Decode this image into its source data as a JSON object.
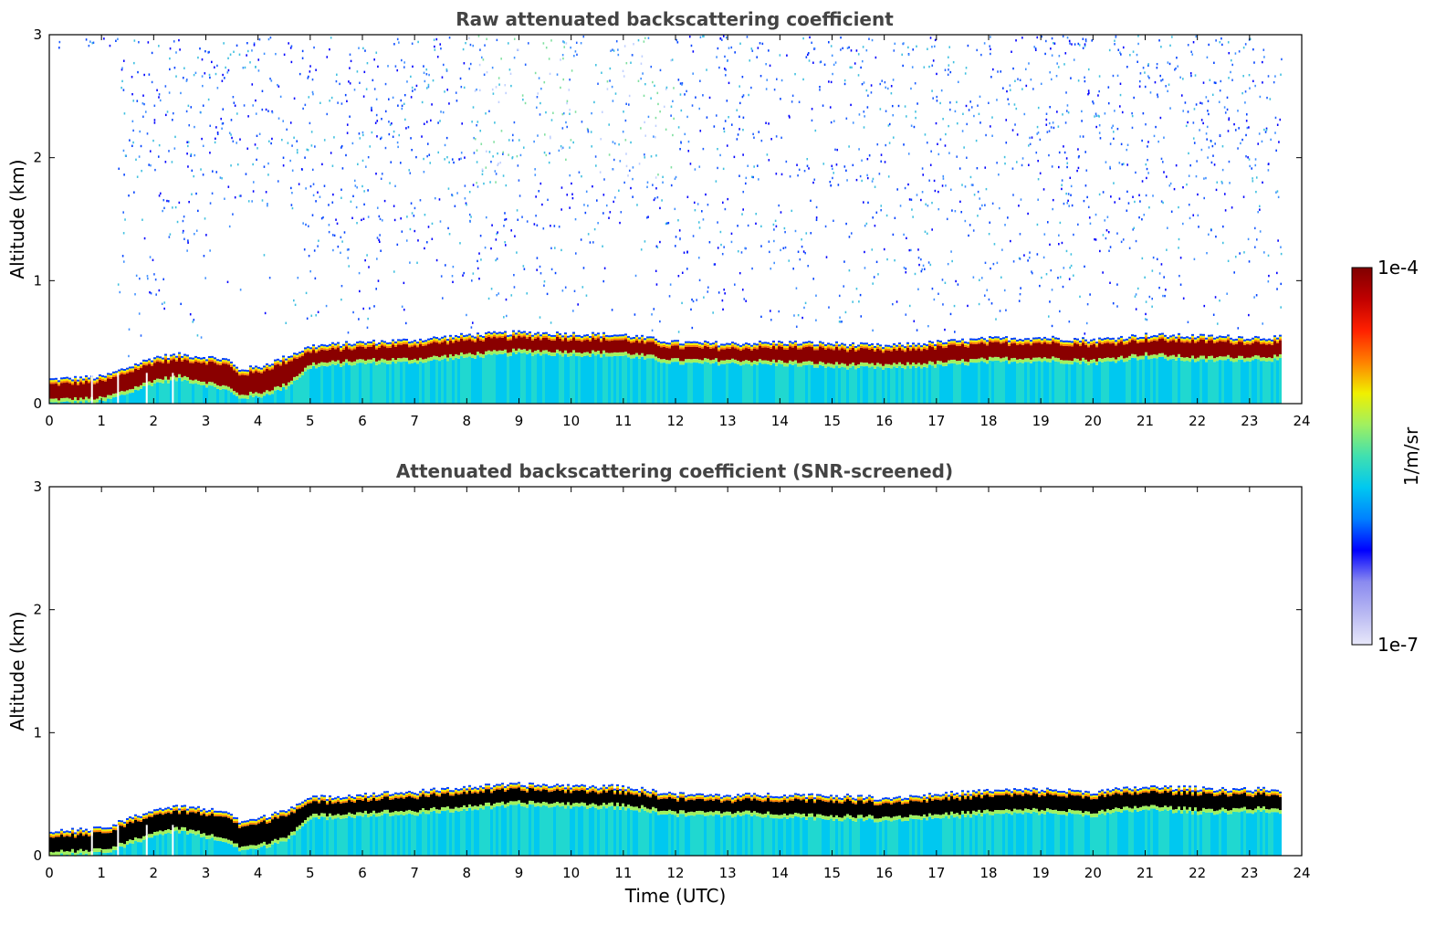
{
  "chart_data": [
    {
      "type": "heatmap",
      "title": "Raw attenuated backscattering coefficient",
      "xlabel": "",
      "ylabel": "Altitude (km)",
      "xlim": [
        0,
        24
      ],
      "ylim": [
        0,
        3
      ],
      "xticks": [
        "0",
        "1",
        "2",
        "3",
        "4",
        "5",
        "6",
        "7",
        "8",
        "9",
        "10",
        "11",
        "12",
        "13",
        "14",
        "15",
        "16",
        "17",
        "18",
        "19",
        "20",
        "21",
        "22",
        "23",
        "24"
      ],
      "yticks": [
        "0",
        "1",
        "2",
        "3"
      ],
      "data_end_hour": 23.6,
      "noise_above_layer": true,
      "layer_top_km": [
        [
          0,
          0.2
        ],
        [
          1,
          0.22
        ],
        [
          1.5,
          0.3
        ],
        [
          2,
          0.38
        ],
        [
          2.5,
          0.4
        ],
        [
          3,
          0.38
        ],
        [
          3.4,
          0.36
        ],
        [
          3.6,
          0.28
        ],
        [
          4,
          0.3
        ],
        [
          4.5,
          0.38
        ],
        [
          5,
          0.47
        ],
        [
          6,
          0.5
        ],
        [
          7,
          0.52
        ],
        [
          8,
          0.56
        ],
        [
          9,
          0.58
        ],
        [
          10,
          0.57
        ],
        [
          11,
          0.56
        ],
        [
          12,
          0.5
        ],
        [
          13,
          0.49
        ],
        [
          14,
          0.5
        ],
        [
          15,
          0.49
        ],
        [
          16,
          0.47
        ],
        [
          17,
          0.5
        ],
        [
          18,
          0.53
        ],
        [
          19,
          0.54
        ],
        [
          20,
          0.52
        ],
        [
          21,
          0.56
        ],
        [
          22,
          0.55
        ],
        [
          23,
          0.54
        ],
        [
          23.6,
          0.54
        ]
      ],
      "peak_layer_km": [
        [
          0,
          0.08
        ],
        [
          1,
          0.09
        ],
        [
          1.5,
          0.16
        ],
        [
          2,
          0.24
        ],
        [
          2.5,
          0.27
        ],
        [
          3,
          0.22
        ],
        [
          3.4,
          0.18
        ],
        [
          3.6,
          0.12
        ],
        [
          4,
          0.13
        ],
        [
          4.5,
          0.2
        ],
        [
          5,
          0.37
        ],
        [
          6,
          0.4
        ],
        [
          7,
          0.41
        ],
        [
          8,
          0.45
        ],
        [
          9,
          0.48
        ],
        [
          10,
          0.47
        ],
        [
          11,
          0.46
        ],
        [
          12,
          0.4
        ],
        [
          13,
          0.4
        ],
        [
          14,
          0.39
        ],
        [
          15,
          0.37
        ],
        [
          16,
          0.36
        ],
        [
          17,
          0.38
        ],
        [
          18,
          0.41
        ],
        [
          19,
          0.42
        ],
        [
          20,
          0.4
        ],
        [
          21,
          0.45
        ],
        [
          22,
          0.42
        ],
        [
          23,
          0.43
        ],
        [
          23.6,
          0.43
        ]
      ]
    },
    {
      "type": "heatmap",
      "title": "Attenuated backscattering coefficient (SNR-screened)",
      "xlabel": "Time (UTC)",
      "ylabel": "Altitude (km)",
      "xlim": [
        0,
        24
      ],
      "ylim": [
        0,
        3
      ],
      "xticks": [
        "0",
        "1",
        "2",
        "3",
        "4",
        "5",
        "6",
        "7",
        "8",
        "9",
        "10",
        "11",
        "12",
        "13",
        "14",
        "15",
        "16",
        "17",
        "18",
        "19",
        "20",
        "21",
        "22",
        "23",
        "24"
      ],
      "yticks": [
        "0",
        "1",
        "2",
        "3"
      ],
      "data_end_hour": 23.6,
      "noise_above_layer": false,
      "saturated_color": "#000000"
    }
  ],
  "colorbar": {
    "label": "1/m/sr",
    "max_label": "1e-4",
    "min_label": "1e-7",
    "scale": "log",
    "range": [
      1e-07,
      0.0001
    ],
    "colors": [
      "#e8e8fa",
      "#b8b8f2",
      "#8a8af0",
      "#0000ff",
      "#0080ff",
      "#00c8f0",
      "#40e0b0",
      "#a0f060",
      "#f0f000",
      "#ff8000",
      "#ff2000",
      "#c00000",
      "#800000"
    ]
  }
}
